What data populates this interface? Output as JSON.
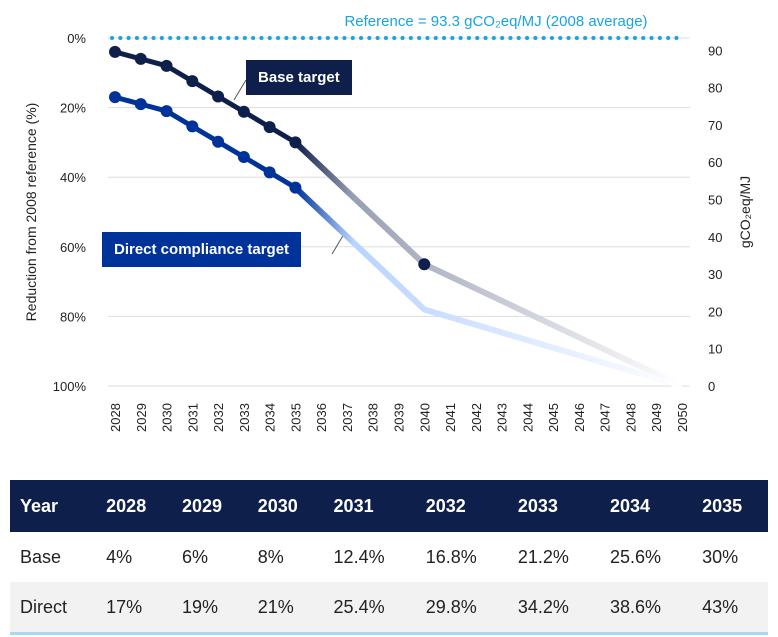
{
  "chart_data": {
    "type": "line",
    "reference_label": "Reference = 93.3 gCO₂eq/MJ (2008 average)",
    "reference_value": 93.3,
    "ylabel_left": "Reduction from 2008 reference (%)",
    "ylabel_right": "gCO₂eq/MJ",
    "ylim_left": [
      0,
      100
    ],
    "ylim_right": [
      0,
      93.3
    ],
    "y_left_inverted": true,
    "yticks_left": [
      "0%",
      "20%",
      "40%",
      "60%",
      "80%",
      "100%"
    ],
    "yticks_right": [
      "0",
      "10",
      "20",
      "30",
      "40",
      "50",
      "60",
      "70",
      "80",
      "90"
    ],
    "x": [
      2028,
      2029,
      2030,
      2031,
      2032,
      2033,
      2034,
      2035,
      2036,
      2037,
      2038,
      2039,
      2040,
      2041,
      2042,
      2043,
      2044,
      2045,
      2046,
      2047,
      2048,
      2049,
      2050
    ],
    "grid": true,
    "series": [
      {
        "name": "Base target",
        "color": "#0f1f4b",
        "fade_color": "#9aa0b4",
        "points": [
          [
            2028,
            4
          ],
          [
            2029,
            6
          ],
          [
            2030,
            8
          ],
          [
            2031,
            12.4
          ],
          [
            2032,
            16.8
          ],
          [
            2033,
            21.2
          ],
          [
            2034,
            25.6
          ],
          [
            2035,
            30
          ],
          [
            2040,
            65
          ],
          [
            2050,
            100
          ]
        ],
        "markers": [
          2028,
          2029,
          2030,
          2031,
          2032,
          2033,
          2034,
          2035,
          2040
        ]
      },
      {
        "name": "Direct compliance target",
        "color": "#003399",
        "fade_color": "#b8d4ff",
        "points": [
          [
            2028,
            17
          ],
          [
            2029,
            19
          ],
          [
            2030,
            21
          ],
          [
            2031,
            25.4
          ],
          [
            2032,
            29.8
          ],
          [
            2033,
            34.2
          ],
          [
            2034,
            38.6
          ],
          [
            2035,
            43
          ],
          [
            2040,
            78
          ],
          [
            2050,
            100
          ]
        ],
        "markers": [
          2028,
          2029,
          2030,
          2031,
          2032,
          2033,
          2034,
          2035
        ]
      }
    ],
    "reference_color": "#1aa3e0"
  },
  "table": {
    "header": [
      "Year",
      "2028",
      "2029",
      "2030",
      "2031",
      "2032",
      "2033",
      "2034",
      "2035"
    ],
    "rows": [
      [
        "Base",
        "4%",
        "6%",
        "8%",
        "12.4%",
        "16.8%",
        "21.2%",
        "25.6%",
        "30%"
      ],
      [
        "Direct",
        "17%",
        "19%",
        "21%",
        "25.4%",
        "29.8%",
        "34.2%",
        "38.6%",
        "43%"
      ]
    ]
  }
}
